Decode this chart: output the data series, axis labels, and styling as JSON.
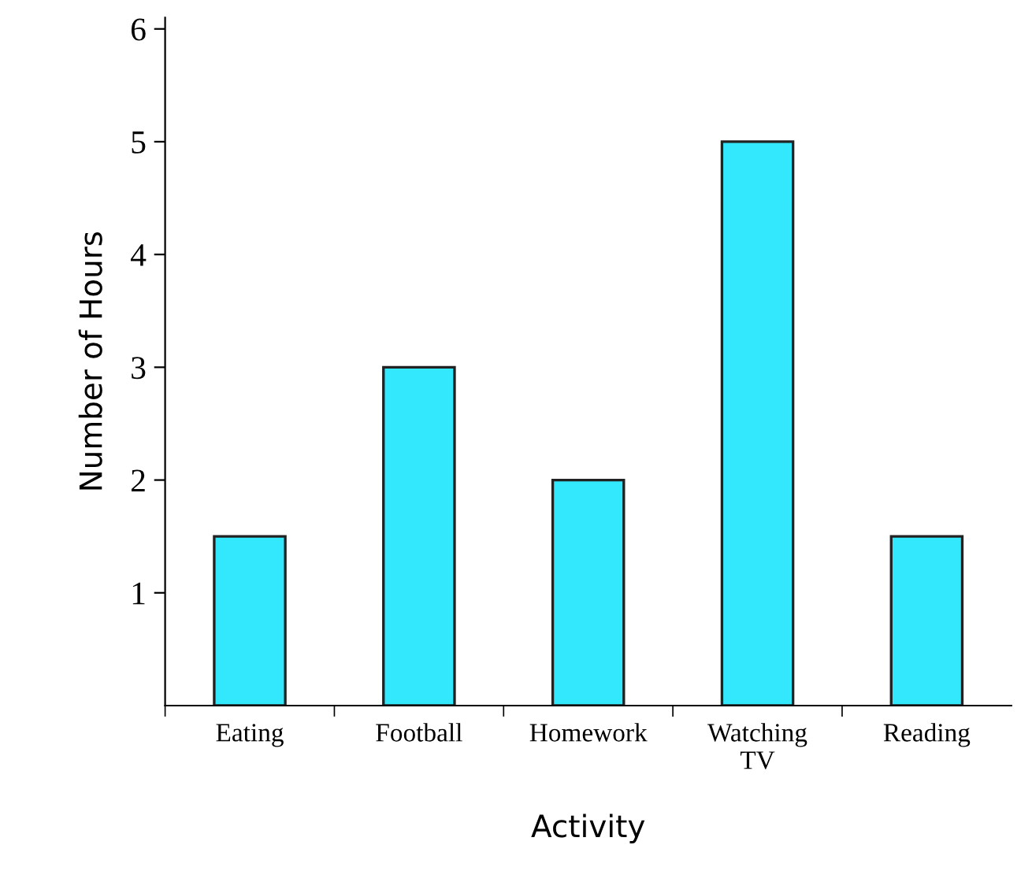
{
  "chart_data": {
    "type": "bar",
    "xlabel": "Activity",
    "ylabel": "Number of Hours",
    "categories": [
      "Eating",
      "Football",
      "Homework",
      "Watching\nTV",
      "Reading"
    ],
    "values": [
      1.5,
      3,
      2,
      5,
      1.5
    ],
    "color": "#33e8fc",
    "ylim": [
      0,
      6.1
    ],
    "yticks": [
      1,
      2,
      3,
      4,
      5,
      6
    ],
    "grid": false,
    "legend": false
  }
}
